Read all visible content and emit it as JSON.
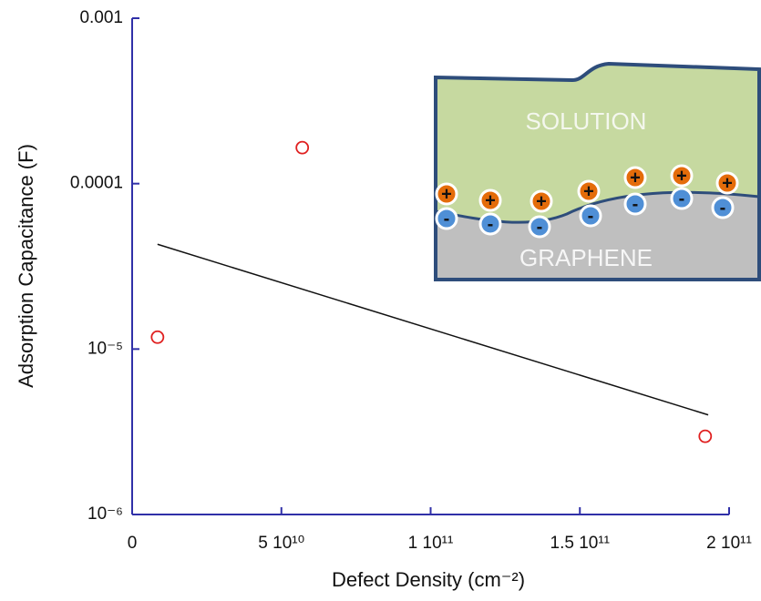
{
  "chart_data": {
    "type": "scatter",
    "x_label": "Defect Density (cm⁻²)",
    "y_label": "Adsorption Capacitance (F)",
    "log_y": true,
    "axis_color": "#3030a8",
    "xlim": [
      0,
      200000000000
    ],
    "xticks": [
      0,
      {
        "value": 50000000000,
        "label": "5 10¹⁰"
      },
      {
        "value": 100000000000,
        "label": "1 10¹¹"
      },
      {
        "value": 150000000000,
        "label": "1.5 10¹¹"
      },
      {
        "value": 200000000000,
        "label": "2 10¹¹"
      }
    ],
    "ylim": [
      1e-06,
      0.001
    ],
    "yticks": [
      {
        "value": 1e-06,
        "label": "10⁻⁶"
      },
      {
        "value": 1e-05,
        "label": "10⁻⁵"
      },
      0.0001,
      0.001
    ],
    "series": [
      {
        "marker": "circle",
        "color": "#e02020",
        "x": [
          8500000000,
          57000000000,
          192000000000
        ],
        "values": [
          1.18e-05,
          0.000165,
          2.97e-06
        ]
      },
      {
        "marker": "line",
        "color": "#111111",
        "x": [
          8500000000,
          193000000000
        ],
        "values": [
          4.3e-05,
          4e-06
        ]
      }
    ]
  },
  "inset": {
    "top_label": "SOLUTION",
    "bottom_label": "GRAPHENE",
    "positive": "+",
    "negative": "-"
  }
}
